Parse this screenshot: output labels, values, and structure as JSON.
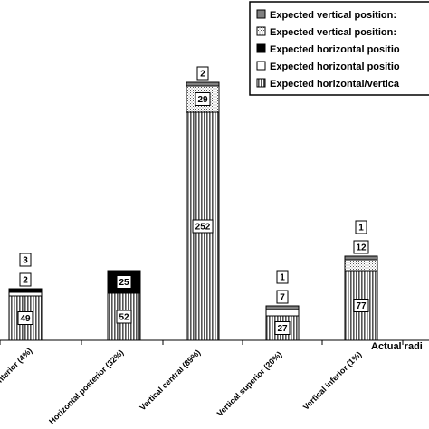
{
  "chart_data": {
    "type": "bar",
    "stacked": true,
    "xlabel": "Actual radi",
    "categories": [
      "nterior (4%)",
      "Horizontal posterior (32%)",
      "Vertical central (89%)",
      "Vertical superior (20%)",
      "Vertical inferior (1%)"
    ],
    "series": [
      {
        "name": "Expected horizontal/vertica",
        "pattern": "vertical-stripes",
        "values": [
          49,
          52,
          252,
          27,
          77
        ]
      },
      {
        "name": "Expected horizontal position",
        "pattern": "white",
        "values": [
          2,
          0,
          0,
          7,
          0
        ]
      },
      {
        "name": "Expected horizontal positio",
        "pattern": "black",
        "values": [
          3,
          25,
          0,
          0,
          0
        ]
      },
      {
        "name": "Expected vertical position:",
        "pattern": "dotted",
        "values": [
          0,
          0,
          29,
          0,
          12
        ]
      },
      {
        "name": "Expected vertical position:",
        "pattern": "gray",
        "values": [
          0,
          0,
          2,
          1,
          1
        ]
      }
    ],
    "data_labels": [
      {
        "category": 0,
        "series": 0,
        "text": "49"
      },
      {
        "category": 0,
        "series": 1,
        "text": "2"
      },
      {
        "category": 0,
        "series": 2,
        "text": "3"
      },
      {
        "category": 1,
        "series": 0,
        "text": "52"
      },
      {
        "category": 1,
        "series": 2,
        "text": "25"
      },
      {
        "category": 2,
        "series": 0,
        "text": "252"
      },
      {
        "category": 2,
        "series": 3,
        "text": "29"
      },
      {
        "category": 2,
        "series": 4,
        "text": "2"
      },
      {
        "category": 3,
        "series": 0,
        "text": "27"
      },
      {
        "category": 3,
        "series": 1,
        "text": "7"
      },
      {
        "category": 3,
        "series": 4,
        "text": "1"
      },
      {
        "category": 4,
        "series": 0,
        "text": "77"
      },
      {
        "category": 4,
        "series": 3,
        "text": "12"
      },
      {
        "category": 4,
        "series": 4,
        "text": "1"
      }
    ],
    "legend": {
      "placement": "top-right",
      "entries": [
        {
          "label": "Expected vertical position:",
          "pattern": "gray"
        },
        {
          "label": "Expected vertical position:",
          "pattern": "dotted"
        },
        {
          "label": "Expected horizontal positio",
          "pattern": "black"
        },
        {
          "label": "Expected horizontal positio",
          "pattern": "white"
        },
        {
          "label": "Expected horizontal/vertica",
          "pattern": "vertical-stripes"
        }
      ]
    },
    "ylim": [
      0,
      300
    ]
  }
}
